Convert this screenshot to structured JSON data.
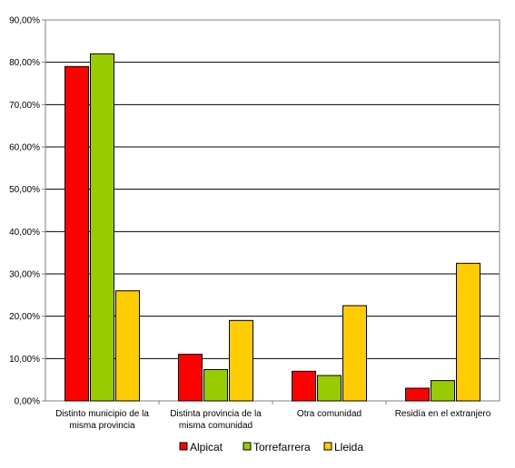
{
  "chart_data": {
    "type": "bar",
    "title": "",
    "xlabel": "",
    "ylabel": "",
    "ylim": [
      0,
      90
    ],
    "y_tick_labels": [
      "0,00%",
      "10,00%",
      "20,00%",
      "30,00%",
      "40,00%",
      "50,00%",
      "60,00%",
      "70,00%",
      "80,00%",
      "90,00%"
    ],
    "categories": [
      [
        "Distinto municipio de la",
        "misma provincia"
      ],
      [
        "Distinta provincia de la",
        "misma comunidad"
      ],
      [
        "Otra comunidad"
      ],
      [
        "Residía en el extranjero"
      ]
    ],
    "series": [
      {
        "name": "Alpicat",
        "color": "#ff0000",
        "values": [
          79,
          11,
          7,
          3
        ]
      },
      {
        "name": "Torrefarrera",
        "color": "#99cc00",
        "values": [
          82,
          7.4,
          6,
          4.8
        ]
      },
      {
        "name": "Lleida",
        "color": "#ffcc00",
        "values": [
          26,
          19,
          22.5,
          32.5
        ]
      }
    ],
    "grid": true,
    "legend_position": "bottom"
  }
}
